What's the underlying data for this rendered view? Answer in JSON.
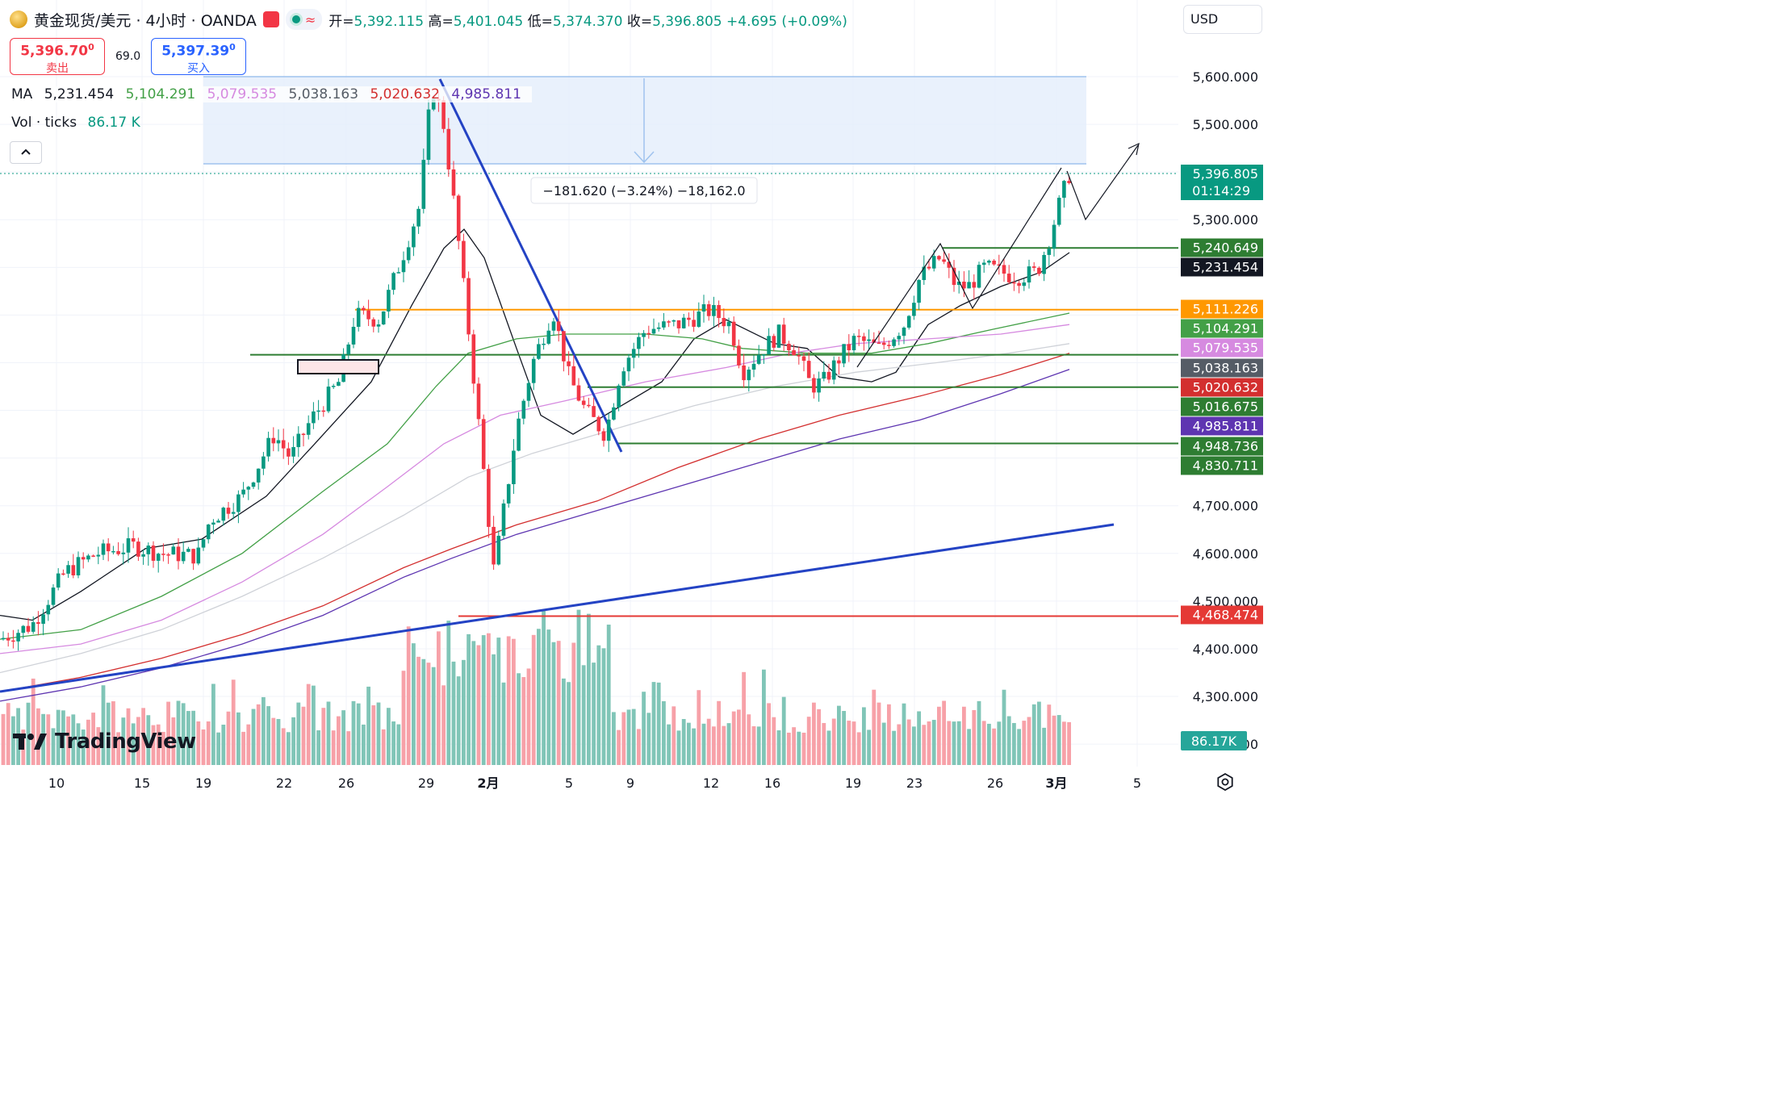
{
  "header": {
    "title": "黄金现货/美元 · 4小时 · OANDA",
    "ohlc": {
      "open_label": "开=",
      "open": "5,392.115",
      "high_label": "高=",
      "high": "5,401.045",
      "low_label": "低=",
      "low": "5,374.370",
      "close_label": "收=",
      "close": "5,396.805",
      "change": "+4.695 (+0.09%)"
    },
    "flag_glyph": "",
    "market_status_icon": "market-open-dot",
    "wave_glyph": "≈"
  },
  "trade": {
    "sell_price": "5,396.70",
    "sell_price_sup": "0",
    "sell_label": "卖出",
    "spread": "69.0",
    "buy_price": "5,397.39",
    "buy_price_sup": "0",
    "buy_label": "买入"
  },
  "indicators": {
    "ma_label": "MA",
    "ma_values": [
      {
        "value": "5,231.454",
        "color": "#131722"
      },
      {
        "value": "5,104.291",
        "color": "#43a047"
      },
      {
        "value": "5,079.535",
        "color": "#d68ae0"
      },
      {
        "value": "5,038.163",
        "color": "#555c66"
      },
      {
        "value": "5,020.632",
        "color": "#d32f2f"
      },
      {
        "value": "4,985.811",
        "color": "#5e35b1"
      }
    ],
    "vol_label": "Vol · ticks",
    "vol_value": "86.17 K",
    "collapse_icon": "chevron-up-icon"
  },
  "currency": "USD",
  "logo_text": "TradingView",
  "measure_label": "−181.620 (−3.24%) −18,162.0",
  "colors": {
    "up": "#089981",
    "down": "#f23645",
    "vol_up": "#80c5b7",
    "vol_down": "#f7a1a8",
    "trend_blue": "#2443c4",
    "hline_green": "#2e7d32",
    "hline_orange": "#ff9800",
    "hline_red": "#e53935"
  },
  "chart_data": {
    "type": "candlestick",
    "ylim": [
      4220,
      5680
    ],
    "y_ticks": [
      "5,600.000",
      "5,500.000",
      "5,300.000",
      "4,700.000",
      "4,600.000",
      "4,500.000",
      "4,400.000",
      "4,300.000",
      "4,200.000"
    ],
    "y_tick_values": [
      5600,
      5500,
      5300,
      4700,
      4600,
      4500,
      4400,
      4300,
      4200
    ],
    "x_tick_labels": [
      "10",
      "15",
      "19",
      "22",
      "26",
      "29",
      "2月",
      "5",
      "9",
      "12",
      "16",
      "19",
      "23",
      "26",
      "3月",
      "5"
    ],
    "price_labels": [
      {
        "text": "5,396.805",
        "sub": "01:14:29",
        "value": 5396.805,
        "color": "#089981"
      },
      {
        "text": "5,240.649",
        "value": 5240.649,
        "color": "#2e7d32"
      },
      {
        "text": "5,231.454",
        "value": 5231.454,
        "color": "#131722"
      },
      {
        "text": "5,111.226",
        "value": 5111.226,
        "color": "#ff9800"
      },
      {
        "text": "5,104.291",
        "value": 5104.291,
        "color": "#43a047"
      },
      {
        "text": "5,079.535",
        "value": 5079.535,
        "color": "#d68ae0"
      },
      {
        "text": "5,038.163",
        "value": 5038.163,
        "color": "#555c66"
      },
      {
        "text": "5,020.632",
        "value": 5020.632,
        "color": "#d32f2f"
      },
      {
        "text": "5,016.675",
        "value": 5016.675,
        "color": "#2e7d32"
      },
      {
        "text": "4,985.811",
        "value": 4985.811,
        "color": "#5e35b1"
      },
      {
        "text": "4,948.736",
        "value": 4948.736,
        "color": "#2e7d32"
      },
      {
        "text": "4,830.711",
        "value": 4830.711,
        "color": "#2e7d32"
      },
      {
        "text": "4,468.474",
        "value": 4468.474,
        "color": "#e53935"
      }
    ],
    "horizontal_levels": [
      {
        "value": 5240.649,
        "color": "#2e7d32"
      },
      {
        "value": 5111.226,
        "color": "#ff9800"
      },
      {
        "value": 5016.675,
        "color": "#2e7d32"
      },
      {
        "value": 4948.736,
        "color": "#2e7d32"
      },
      {
        "value": 4830.711,
        "color": "#2e7d32"
      },
      {
        "value": 4468.474,
        "color": "#e53935"
      }
    ],
    "volume_label": "86.17K",
    "last_price": 5396.805
  }
}
